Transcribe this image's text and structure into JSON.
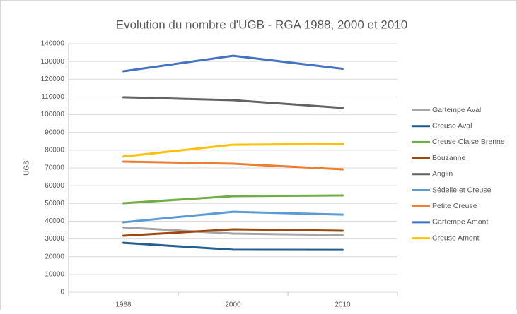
{
  "chart_data": {
    "type": "line",
    "title": "Evolution du nombre d'UGB - RGA 1988, 2000 et 2010",
    "y_label": "UGB",
    "categories": [
      "1988",
      "2000",
      "2010"
    ],
    "series": [
      {
        "name": "Gartempe Aval",
        "color": "#a5a5a5",
        "values": [
          36500,
          33000,
          32200
        ]
      },
      {
        "name": "Creuse Aval",
        "color": "#255e91",
        "values": [
          27800,
          23900,
          23800
        ]
      },
      {
        "name": "Creuse Claise Brenne",
        "color": "#70ad47",
        "values": [
          50100,
          54100,
          54500
        ]
      },
      {
        "name": "Bouzanne",
        "color": "#9e480e",
        "values": [
          31800,
          35400,
          34600
        ]
      },
      {
        "name": "Anglin",
        "color": "#636363",
        "values": [
          109800,
          108200,
          103800
        ]
      },
      {
        "name": "Sédelle et Creuse",
        "color": "#5b9bd5",
        "values": [
          39400,
          45300,
          43700
        ]
      },
      {
        "name": "Petite Creuse",
        "color": "#ed7d31",
        "values": [
          73600,
          72400,
          69200
        ]
      },
      {
        "name": "Gartempe Amont",
        "color": "#4472c4",
        "values": [
          124500,
          133200,
          125900
        ]
      },
      {
        "name": "Creuse Amont",
        "color": "#ffc000",
        "values": [
          76400,
          83100,
          83500
        ]
      }
    ],
    "ylim": [
      0,
      140000
    ],
    "yticks": [
      0,
      10000,
      20000,
      30000,
      40000,
      50000,
      60000,
      70000,
      80000,
      90000,
      100000,
      110000,
      120000,
      130000,
      140000
    ],
    "grid": true,
    "legend": "right"
  }
}
